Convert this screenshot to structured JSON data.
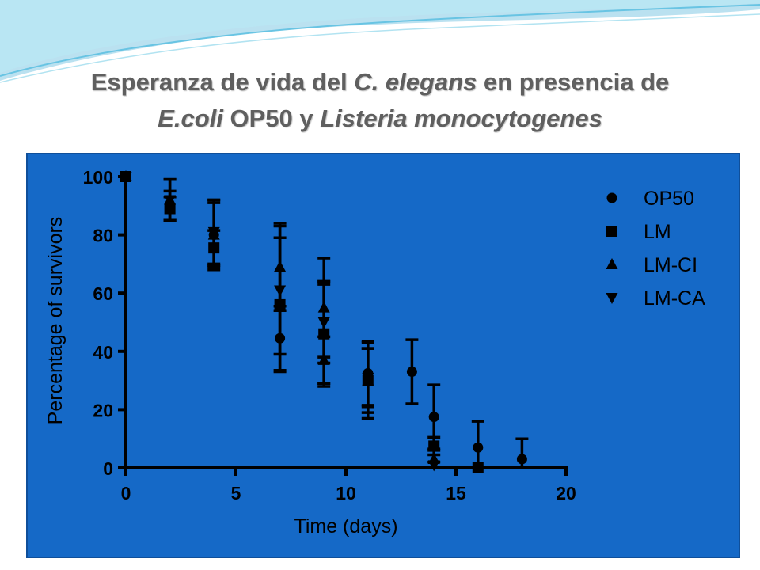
{
  "slide": {
    "title_line1": [
      {
        "text": "Esperanza de vida del ",
        "italic": false
      },
      {
        "text": "C. elegans",
        "italic": true
      },
      {
        "text": " en presencia de",
        "italic": false
      }
    ],
    "title_line2": [
      {
        "text": "E.coli",
        "italic": true
      },
      {
        "text": " OP50 y ",
        "italic": false
      },
      {
        "text": "Listeria monocytogenes",
        "italic": true
      }
    ],
    "title_color": "#5f5f5f",
    "panel_color": "#1569c7",
    "decoration_color": "#7fd3e8"
  },
  "chart_data": {
    "type": "scatter",
    "xlabel": "Time (days)",
    "ylabel": "Percentage of survivors",
    "xlim": [
      0,
      20
    ],
    "ylim": [
      0,
      100
    ],
    "xticks": [
      "0",
      "5",
      "10",
      "15",
      "20"
    ],
    "yticks": [
      "0",
      "20",
      "40",
      "60",
      "80",
      "100"
    ],
    "legend_position": "top-right",
    "mark_color": "#000000",
    "series": [
      {
        "name": "OP50",
        "marker": "circle",
        "points": [
          {
            "x": 0,
            "y": 100,
            "err": 0
          },
          {
            "x": 2,
            "y": 90,
            "err": 5
          },
          {
            "x": 4,
            "y": 80,
            "err": 11
          },
          {
            "x": 7,
            "y": 44.5,
            "err": 11
          },
          {
            "x": 9,
            "y": 46,
            "err": 18
          },
          {
            "x": 11,
            "y": 32.5,
            "err": 11
          },
          {
            "x": 13,
            "y": 33,
            "err": 11
          },
          {
            "x": 14,
            "y": 17.5,
            "err": 11
          },
          {
            "x": 16,
            "y": 7,
            "err": 9
          },
          {
            "x": 18,
            "y": 3,
            "err": 7
          }
        ]
      },
      {
        "name": "LM",
        "marker": "square",
        "points": [
          {
            "x": 0,
            "y": 100,
            "err": 0
          },
          {
            "x": 2,
            "y": 89,
            "err": 4
          },
          {
            "x": 4,
            "y": 75.5,
            "err": 6
          },
          {
            "x": 7,
            "y": 56,
            "err": 23
          },
          {
            "x": 9,
            "y": 46,
            "err": 17
          },
          {
            "x": 11,
            "y": 30,
            "err": 11
          },
          {
            "x": 14,
            "y": 7.5,
            "err": 3
          },
          {
            "x": 16,
            "y": 0,
            "err": 0
          }
        ]
      },
      {
        "name": "LM-CI",
        "marker": "triangle-up",
        "points": [
          {
            "x": 0,
            "y": 100,
            "err": 0
          },
          {
            "x": 2,
            "y": 92,
            "err": 7
          },
          {
            "x": 4,
            "y": 80,
            "err": 12
          },
          {
            "x": 7,
            "y": 69,
            "err": 15
          },
          {
            "x": 9,
            "y": 55,
            "err": 17
          },
          {
            "x": 9,
            "y": 37,
            "err": 8
          },
          {
            "x": 11,
            "y": 30,
            "err": 13
          },
          {
            "x": 14,
            "y": 3,
            "err": 3
          }
        ]
      },
      {
        "name": "LM-CA",
        "marker": "triangle-down",
        "points": [
          {
            "x": 0,
            "y": 100,
            "err": 0
          },
          {
            "x": 2,
            "y": 92,
            "err": 7
          },
          {
            "x": 4,
            "y": 81,
            "err": 11
          },
          {
            "x": 7,
            "y": 61,
            "err": 22
          },
          {
            "x": 9,
            "y": 50,
            "err": 14
          },
          {
            "x": 11,
            "y": 31,
            "err": 10
          },
          {
            "x": 14,
            "y": 1,
            "err": 1
          }
        ]
      }
    ]
  }
}
